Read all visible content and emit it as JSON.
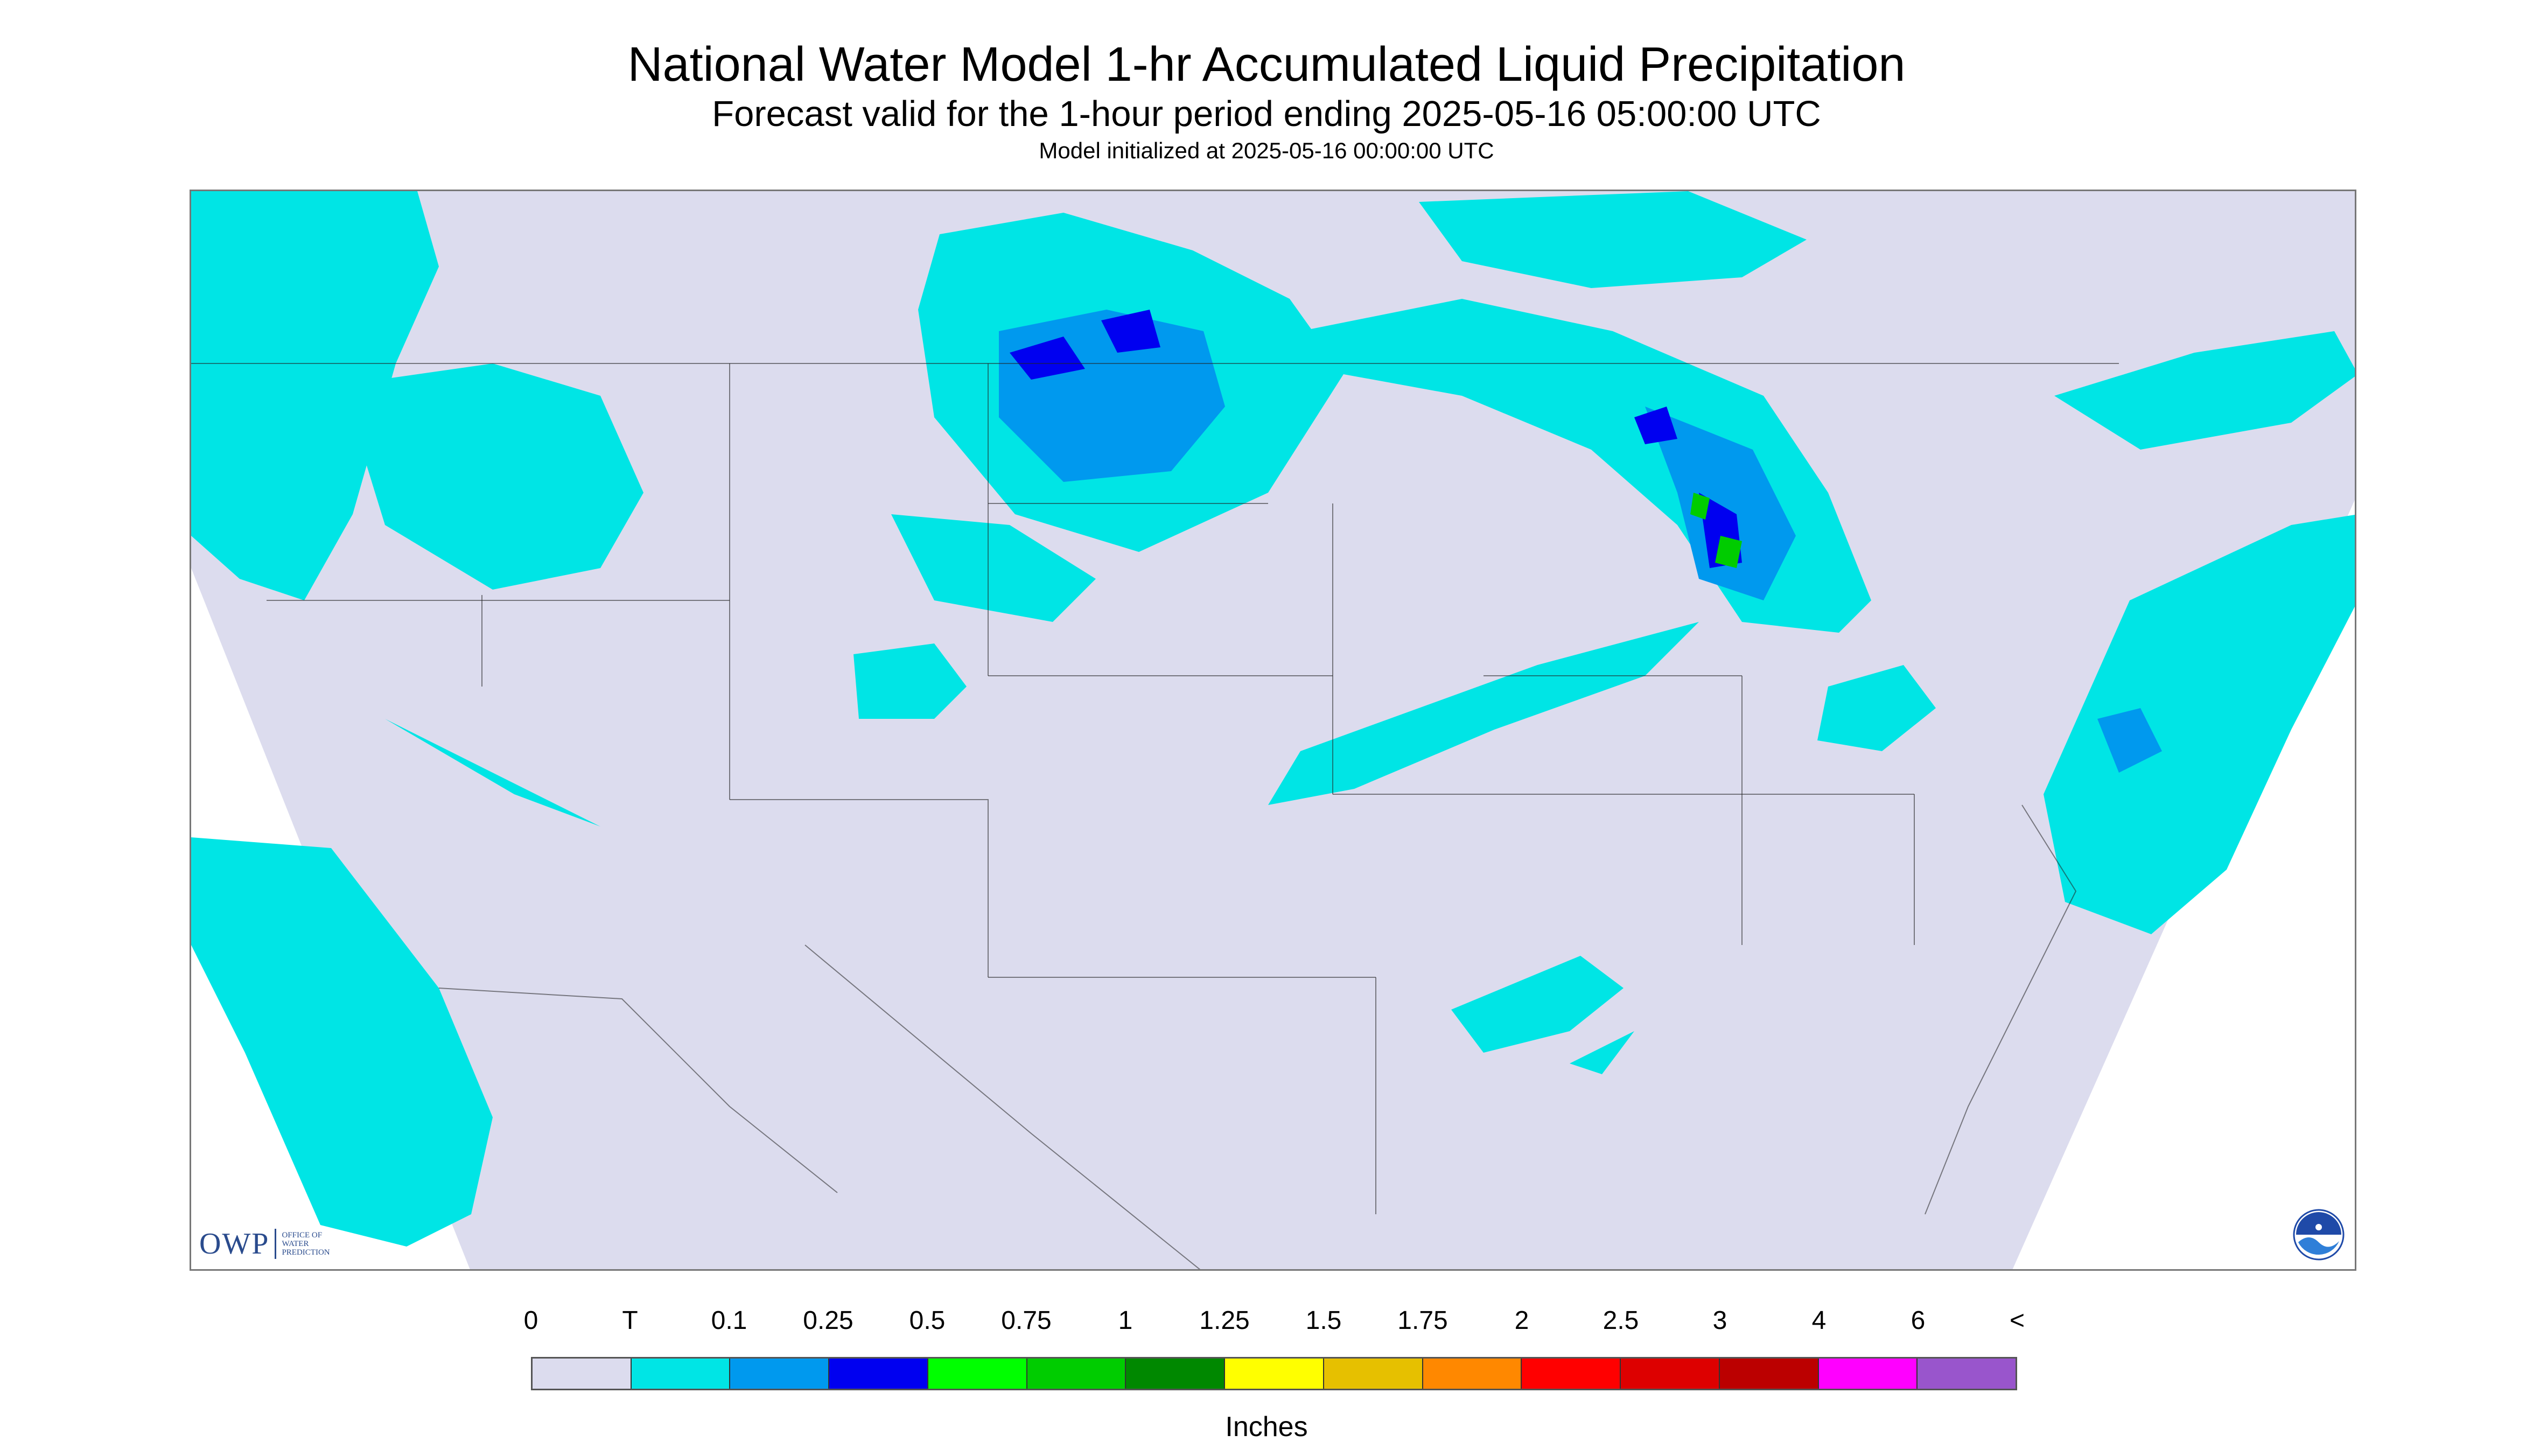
{
  "header": {
    "title": "National Water Model 1-hr Accumulated Liquid Precipitation",
    "subtitle": "Forecast valid for the 1-hour period ending 2025-05-16 05:00:00 UTC",
    "init": "Model initialized at 2025-05-16 00:00:00 UTC"
  },
  "map": {
    "background_color": "#dcdcee",
    "outside_color": "#ffffff",
    "precip_light": "#00e5e5",
    "precip_mid": "#0099ee",
    "precip_heavy": "#0000f0",
    "precip_green": "#00cc00",
    "border_color": "#222222"
  },
  "logos": {
    "owp_mark": "OWP",
    "owp_text": "OFFICE OF\nWATER\nPREDICTION",
    "noaa_icon": "noaa-logo-icon"
  },
  "legend": {
    "tick_labels": [
      "0",
      "T",
      "0.1",
      "0.25",
      "0.5",
      "0.75",
      "1",
      "1.25",
      "1.5",
      "1.75",
      "2",
      "2.5",
      "3",
      "4",
      "6",
      "<"
    ],
    "colors": [
      "#dcdcee",
      "#00e5e5",
      "#0099ee",
      "#0000f0",
      "#00ff00",
      "#00cc00",
      "#008800",
      "#ffff00",
      "#e6c000",
      "#ff8800",
      "#ff0000",
      "#dd0000",
      "#bb0000",
      "#ff00ff",
      "#9955cc"
    ],
    "units": "Inches"
  }
}
